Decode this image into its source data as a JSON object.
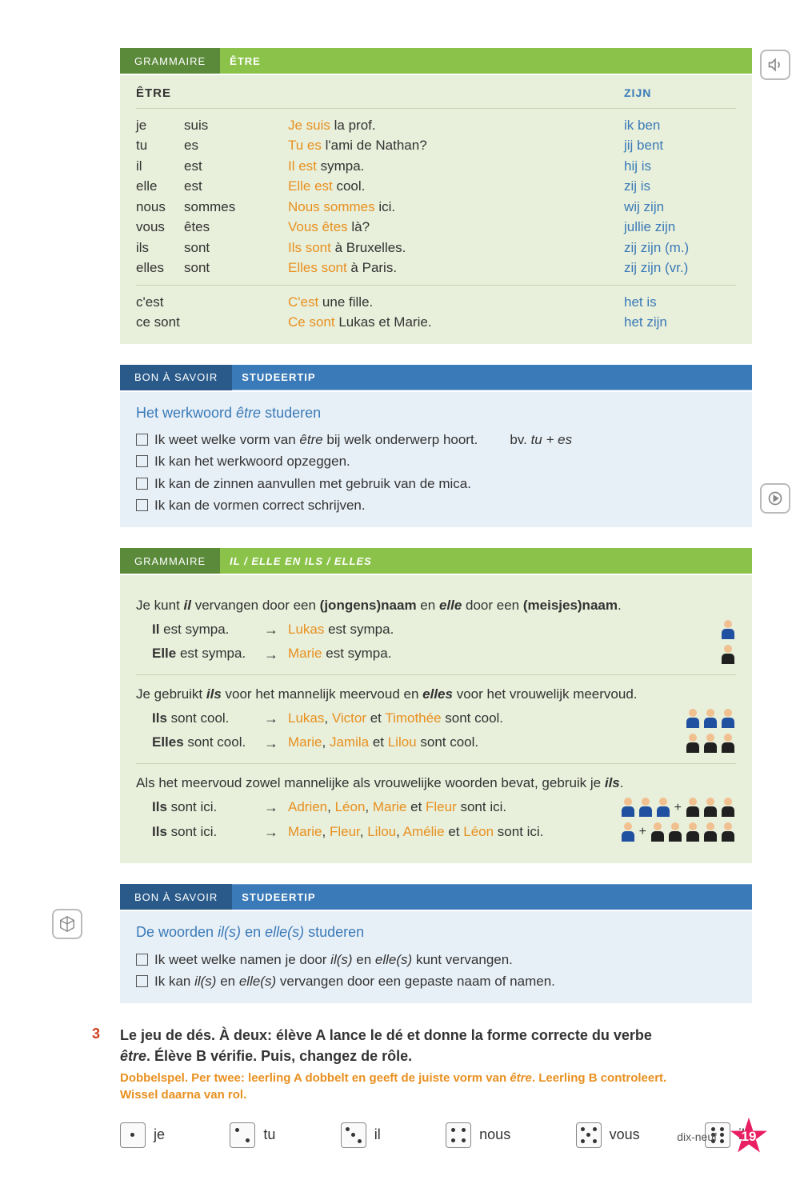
{
  "colors": {
    "green_dark": "#5a8a3a",
    "green_light": "#8bc34a",
    "green_bg": "#e8efda",
    "blue_dark": "#2a5a8a",
    "blue_light": "#3a7ab8",
    "blue_bg": "#e8f0f7",
    "orange": "#e89020",
    "red": "#d04020",
    "pink": "#e91e63"
  },
  "headers": {
    "grammaire": "GRAMMAIRE",
    "etre": "ÊTRE",
    "bonasavoir": "BON À SAVOIR",
    "studeertip": "STUDEERTIP",
    "ilelle": "IL / ELLE EN ILS / ELLES"
  },
  "etre_table": {
    "head_fr": "ÊTRE",
    "head_nl": "ZIJN",
    "rows": [
      {
        "p": "je",
        "v": "suis",
        "ex_hi": "Je suis",
        "ex_rest": " la prof.",
        "nl": "ik ben"
      },
      {
        "p": "tu",
        "v": "es",
        "ex_hi": "Tu es",
        "ex_rest": " l'ami de Nathan?",
        "nl": "jij bent"
      },
      {
        "p": "il",
        "v": "est",
        "ex_hi": "Il est",
        "ex_rest": " sympa.",
        "nl": "hij is"
      },
      {
        "p": "elle",
        "v": "est",
        "ex_hi": "Elle est",
        "ex_rest": " cool.",
        "nl": "zij is"
      },
      {
        "p": "nous",
        "v": "sommes",
        "ex_hi": "Nous sommes",
        "ex_rest": " ici.",
        "nl": "wij zijn"
      },
      {
        "p": "vous",
        "v": "êtes",
        "ex_hi": "Vous êtes",
        "ex_rest": " là?",
        "nl": "jullie zijn"
      },
      {
        "p": "ils",
        "v": "sont",
        "ex_hi": "Ils sont",
        "ex_rest": " à Bruxelles.",
        "nl": "zij zijn (m.)"
      },
      {
        "p": "elles",
        "v": "sont",
        "ex_hi": "Elles sont",
        "ex_rest": " à Paris.",
        "nl": "zij zijn (vr.)"
      }
    ],
    "extra": [
      {
        "p": "c'est",
        "ex_hi": "C'est",
        "ex_rest": " une fille.",
        "nl": "het is"
      },
      {
        "p": "ce sont",
        "ex_hi": "Ce sont",
        "ex_rest": " Lukas et Marie.",
        "nl": "het zijn"
      }
    ]
  },
  "tip1": {
    "title_pre": "Het werkwoord ",
    "title_it": "être",
    "title_post": " studeren",
    "lines": [
      {
        "pre": "Ik weet welke vorm van ",
        "it": "être",
        "post": " bij welk onderwerp hoort.",
        "hint_pre": "bv. ",
        "hint_it": "tu + es"
      },
      {
        "pre": "Ik kan het werkwoord opzeggen.",
        "it": "",
        "post": ""
      },
      {
        "pre": "Ik kan de zinnen aanvullen met gebruik van ",
        "it": "",
        "post": "de mica."
      },
      {
        "pre": "Ik kan de vormen correct schrijven.",
        "it": "",
        "post": ""
      }
    ]
  },
  "rules": {
    "r1": {
      "text_parts": [
        "Je kunt ",
        " vervangen door een ",
        " en ",
        " door een ",
        "."
      ],
      "bold_it": [
        "il",
        "elle"
      ],
      "bold": [
        "(jongens)naam",
        "(meisjes)naam"
      ],
      "ex": [
        {
          "b": "Il",
          "rest": " est sympa.",
          "r_names": [
            "Lukas"
          ],
          "r_rest": " est sympa.",
          "icons": [
            {
              "t": "male"
            }
          ]
        },
        {
          "b": "Elle",
          "rest": " est sympa.",
          "r_names": [
            "Marie"
          ],
          "r_rest": " est sympa.",
          "icons": [
            {
              "t": "female"
            }
          ]
        }
      ]
    },
    "r2": {
      "text_parts": [
        "Je gebruikt ",
        " voor het mannelijk meervoud en ",
        " voor het vrouwelijk meervoud."
      ],
      "bold_it": [
        "ils",
        "elles"
      ],
      "ex": [
        {
          "b": "Ils",
          "rest": " sont cool.",
          "r_names": [
            "Lukas",
            "Victor",
            "Timothée"
          ],
          "r_sep": [
            ", ",
            " et "
          ],
          "r_rest": " sont cool.",
          "icons": [
            {
              "t": "male"
            },
            {
              "t": "male"
            },
            {
              "t": "male"
            }
          ]
        },
        {
          "b": "Elles",
          "rest": " sont cool.",
          "r_names": [
            "Marie",
            "Jamila",
            "Lilou"
          ],
          "r_sep": [
            ", ",
            " et "
          ],
          "r_rest": " sont cool.",
          "icons": [
            {
              "t": "female"
            },
            {
              "t": "female"
            },
            {
              "t": "female"
            }
          ]
        }
      ]
    },
    "r3": {
      "text_parts": [
        "Als het meervoud zowel mannelijke als vrouwelijke woorden bevat, gebruik je ",
        "."
      ],
      "bold_it": [
        "ils"
      ],
      "ex": [
        {
          "b": "Ils",
          "rest": " sont ici.",
          "r_names": [
            "Adrien",
            "Léon",
            "Marie",
            "Fleur"
          ],
          "r_sep": [
            ", ",
            ", ",
            " et "
          ],
          "r_rest": " sont ici.",
          "icons": [
            {
              "t": "male"
            },
            {
              "t": "male"
            },
            {
              "t": "male"
            },
            {
              "t": "plus"
            },
            {
              "t": "female"
            },
            {
              "t": "female"
            },
            {
              "t": "female"
            }
          ]
        },
        {
          "b": "Ils",
          "rest": " sont ici.",
          "r_names": [
            "Marie",
            "Fleur",
            "Lilou",
            "Amélie",
            "Léon"
          ],
          "r_sep": [
            ", ",
            ", ",
            ", ",
            " et "
          ],
          "r_rest": " sont ici.",
          "icons": [
            {
              "t": "male"
            },
            {
              "t": "plus"
            },
            {
              "t": "female"
            },
            {
              "t": "female"
            },
            {
              "t": "female"
            },
            {
              "t": "female"
            },
            {
              "t": "female"
            }
          ]
        }
      ]
    }
  },
  "tip2": {
    "title_pre": "De woorden ",
    "title_it1": "il(s)",
    "title_mid": " en ",
    "title_it2": "elle(s)",
    "title_post": " studeren",
    "lines": [
      {
        "text": "Ik weet welke namen je door ",
        "it1": "il(s)",
        "mid": " en ",
        "it2": "elle(s)",
        "post": " kunt vervangen."
      },
      {
        "text": "Ik kan ",
        "it1": "il(s)",
        "mid": " en ",
        "it2": "elle(s)",
        "post": " vervangen door een gepaste naam of namen."
      }
    ]
  },
  "exercise": {
    "num": "3",
    "title_l1": "Le jeu de dés. À deux: élève A lance le dé et donne la forme correcte du verbe",
    "title_l2_it": "être",
    "title_l2_rest": ". Élève B vérifie. Puis, changez de rôle.",
    "sub_l1_pre": "Dobbelspel. Per twee: leerling A dobbelt en geeft de juiste vorm van ",
    "sub_l1_it": "être",
    "sub_l1_post": ". Leerling B controleert.",
    "sub_l2": "Wissel daarna van rol.",
    "dice": [
      "je",
      "tu",
      "il",
      "nous",
      "vous",
      "ils"
    ]
  },
  "footer": {
    "word": "dix-neuf",
    "num": "19"
  }
}
